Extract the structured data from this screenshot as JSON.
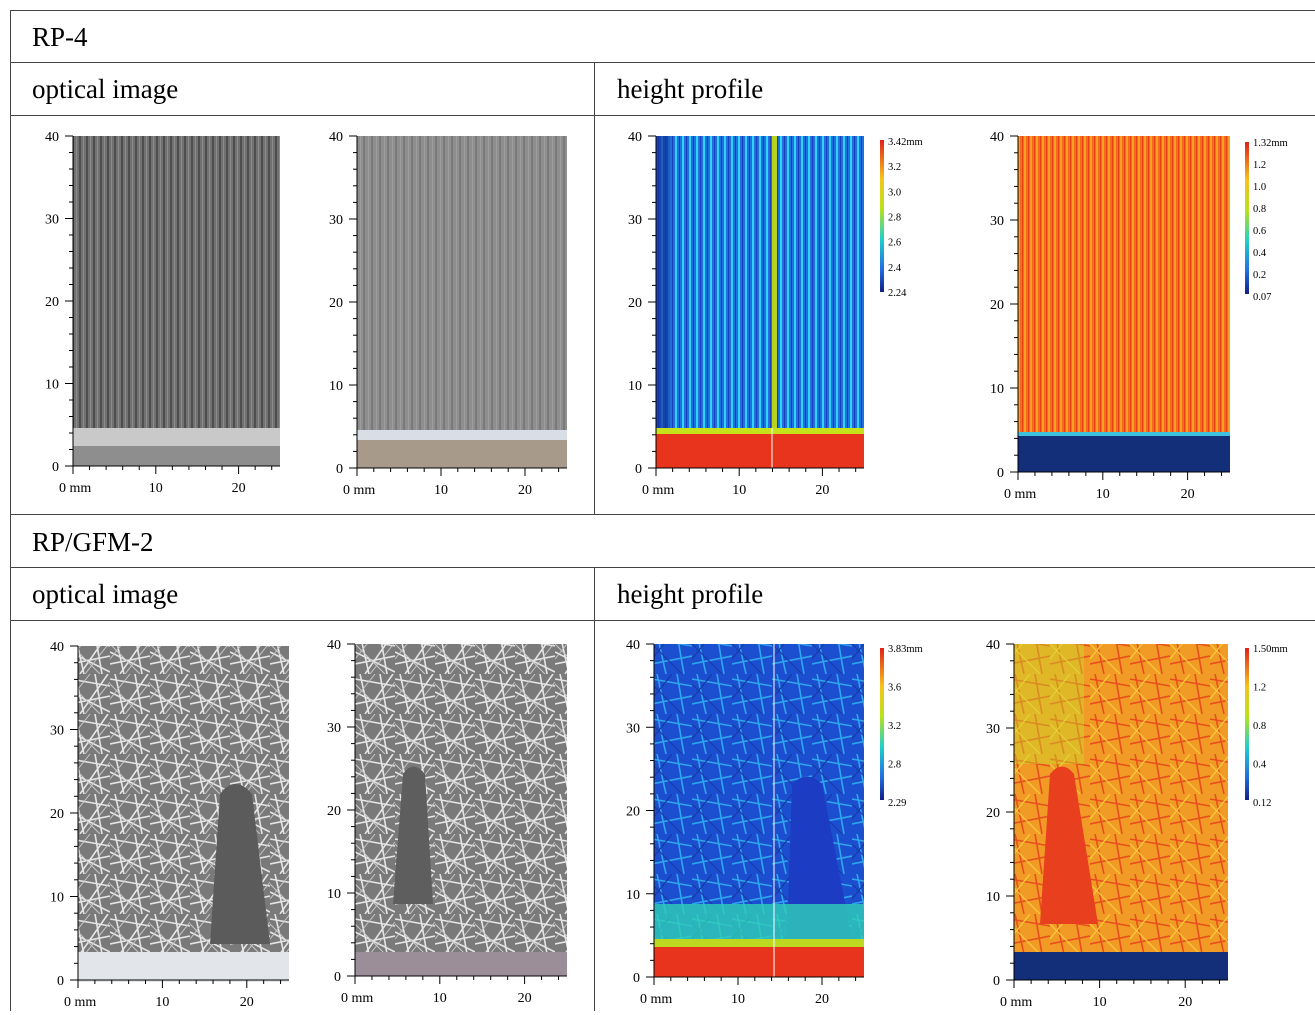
{
  "sections": [
    {
      "title": "RP-4",
      "optical_label": "optical image",
      "height_label": "height profile",
      "height_scales": [
        {
          "unit_top": "3.42mm",
          "labels": [
            "3.2",
            "3.0",
            "2.8",
            "2.6",
            "2.4"
          ],
          "bottom": "2.24"
        },
        {
          "unit_top": "1.32mm",
          "labels": [
            "1.2",
            "1.0",
            "0.8",
            "0.6",
            "0.4",
            "0.2"
          ],
          "bottom": "0.07"
        }
      ]
    },
    {
      "title": "RP/GFM-2",
      "optical_label": "optical image",
      "height_label": "height profile",
      "height_scales": [
        {
          "unit_top": "3.83mm",
          "labels": [
            "3.6",
            "3.2",
            "2.8"
          ],
          "bottom": "2.29"
        },
        {
          "unit_top": "1.50mm",
          "labels": [
            "1.2",
            "0.8",
            "0.4"
          ],
          "bottom": "0.12"
        }
      ]
    }
  ],
  "axes": {
    "y_ticks": [
      "40",
      "30",
      "20",
      "10",
      "0"
    ],
    "x_ticks": [
      "0 mm",
      "10",
      "20"
    ]
  },
  "colors": {
    "optical_dark": "#6e6e6e",
    "optical_light": "#d8d8d8",
    "blue": "#1f5fd8",
    "cyan": "#2bc7f0",
    "red": "#e8341c",
    "orange": "#f36a1a",
    "navy": "#142f7a"
  }
}
